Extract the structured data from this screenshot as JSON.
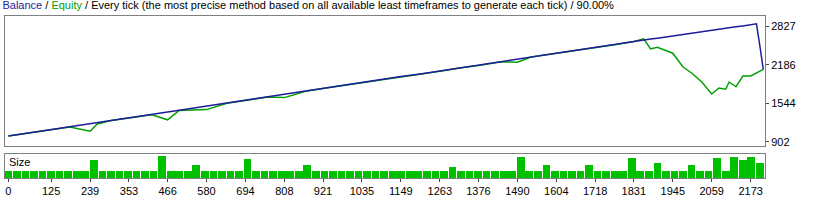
{
  "chart_data": [
    {
      "type": "line",
      "title": "Balance / Equity / Every tick (the most precise method based on all available least timeframes to generate each tick) / 90.00%",
      "x": [
        0,
        60,
        120,
        180,
        239,
        260,
        300,
        353,
        420,
        466,
        500,
        580,
        640,
        694,
        760,
        808,
        870,
        921,
        1000,
        1035,
        1100,
        1149,
        1206,
        1263,
        1320,
        1376,
        1440,
        1490,
        1530,
        1604,
        1660,
        1718,
        1780,
        1831,
        1860,
        1880,
        1900,
        1945,
        1975,
        2000,
        2030,
        2059,
        2080,
        2100,
        2110,
        2130,
        2150,
        2173,
        2190,
        2200,
        2210
      ],
      "series": [
        {
          "name": "Balance",
          "color": "#1c1c9c",
          "values": [
            1000,
            1050,
            1100,
            1155,
            1205,
            1225,
            1260,
            1305,
            1360,
            1400,
            1430,
            1500,
            1550,
            1600,
            1655,
            1695,
            1750,
            1790,
            1860,
            1890,
            1945,
            1990,
            2035,
            2085,
            2135,
            2180,
            2240,
            2280,
            2315,
            2380,
            2430,
            2480,
            2530,
            2575,
            2600,
            2615,
            2630,
            2670,
            2695,
            2715,
            2740,
            2760,
            2780,
            2795,
            2800,
            2820,
            2835,
            2855,
            2870,
            2500,
            2110
          ]
        },
        {
          "name": "Equity",
          "color": "#00a000",
          "values": [
            1000,
            1050,
            1095,
            1150,
            1080,
            1200,
            1260,
            1300,
            1355,
            1270,
            1425,
            1440,
            1545,
            1590,
            1650,
            1640,
            1745,
            1790,
            1855,
            1890,
            1945,
            1985,
            2035,
            2080,
            2135,
            2175,
            2235,
            2230,
            2315,
            2375,
            2430,
            2475,
            2525,
            2575,
            2620,
            2450,
            2480,
            2380,
            2150,
            2050,
            1900,
            1700,
            1800,
            1780,
            1900,
            1820,
            2000,
            2000,
            2050,
            2080,
            2110
          ]
        }
      ],
      "xlim": [
        -10,
        2215
      ],
      "ylim": [
        840,
        3000
      ],
      "yticks": [
        902,
        1544,
        2186,
        2827
      ],
      "grid": false,
      "tick_labels": "y"
    },
    {
      "type": "bar",
      "title": "Size",
      "x": [
        0,
        25,
        50,
        75,
        100,
        125,
        150,
        175,
        200,
        225,
        250,
        275,
        300,
        325,
        350,
        375,
        400,
        425,
        450,
        475,
        500,
        525,
        550,
        575,
        600,
        625,
        650,
        675,
        700,
        725,
        750,
        775,
        800,
        825,
        850,
        875,
        900,
        925,
        950,
        975,
        1000,
        1025,
        1050,
        1075,
        1100,
        1125,
        1150,
        1175,
        1200,
        1225,
        1250,
        1275,
        1300,
        1325,
        1350,
        1375,
        1400,
        1425,
        1450,
        1475,
        1500,
        1525,
        1550,
        1575,
        1600,
        1625,
        1650,
        1675,
        1700,
        1725,
        1750,
        1775,
        1800,
        1825,
        1850,
        1875,
        1900,
        1925,
        1950,
        1975,
        2000,
        2025,
        2050,
        2075,
        2100,
        2125,
        2150,
        2175,
        2200
      ],
      "values": [
        0.3,
        0.3,
        0.3,
        0.3,
        0.3,
        0.3,
        0.3,
        0.3,
        0.3,
        0.3,
        0.8,
        0.3,
        0.3,
        0.3,
        0.3,
        0.3,
        0.3,
        0.3,
        1.0,
        0.3,
        0.3,
        0.3,
        0.6,
        0.3,
        0.3,
        0.3,
        0.3,
        0.3,
        0.85,
        0.3,
        0.3,
        0.3,
        0.3,
        0.3,
        0.3,
        0.6,
        0.3,
        0.3,
        0.3,
        0.3,
        0.3,
        0.3,
        0.3,
        0.3,
        0.3,
        0.3,
        0.3,
        0.3,
        0.3,
        0.3,
        0.3,
        0.3,
        0.5,
        0.3,
        0.3,
        0.3,
        0.3,
        0.3,
        0.3,
        0.3,
        0.95,
        0.3,
        0.3,
        0.6,
        0.3,
        0.3,
        0.3,
        0.3,
        0.6,
        0.3,
        0.3,
        0.3,
        0.3,
        0.9,
        0.3,
        0.3,
        0.7,
        0.3,
        0.3,
        0.3,
        0.6,
        0.3,
        0.3,
        0.9,
        0.3,
        0.95,
        0.8,
        0.95,
        0.7
      ],
      "color": "#00c000",
      "xlim": [
        -10,
        2215
      ],
      "xticks": [
        0,
        125,
        239,
        353,
        466,
        580,
        694,
        808,
        921,
        1035,
        1149,
        1263,
        1376,
        1490,
        1604,
        1718,
        1831,
        1945,
        2059,
        2173
      ],
      "ylim": [
        0,
        1.1
      ],
      "grid": false,
      "tick_labels": "x"
    }
  ]
}
